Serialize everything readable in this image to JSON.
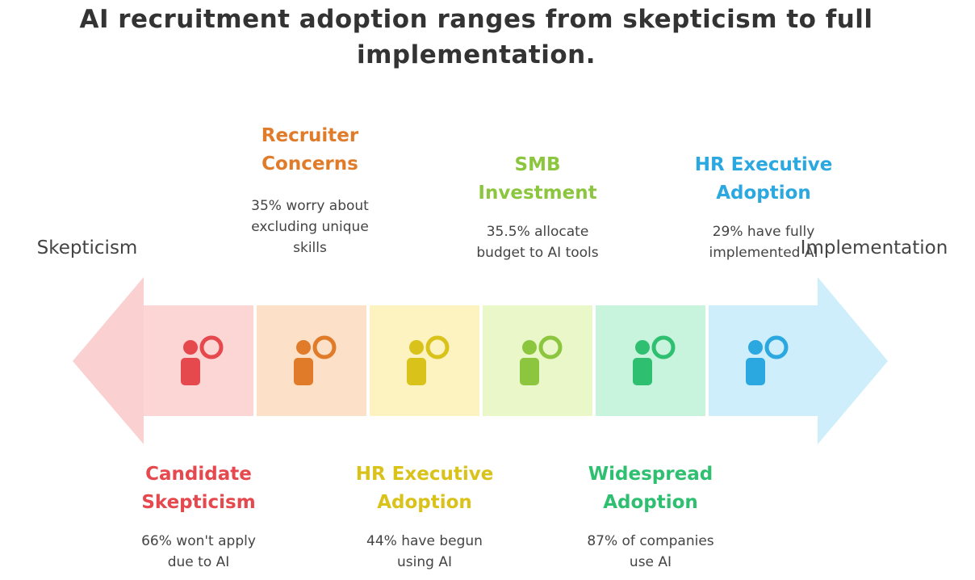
{
  "title_lines": [
    "AI recruitment adoption ranges from skepticism to full",
    "implementation."
  ],
  "left_label": "Skepticism",
  "right_label": "Implementation",
  "items": [
    {
      "title_lines": [
        "Candidate",
        "Skepticism"
      ],
      "description_lines": [
        "66% won't apply",
        "due to AI"
      ]
    },
    {
      "title_lines": [
        "Recruiter",
        "Concerns"
      ],
      "description_lines": [
        "35% worry about",
        "excluding unique",
        "skills"
      ]
    },
    {
      "title_lines": [
        "HR Executive",
        "Adoption"
      ],
      "description_lines": [
        "44% have begun",
        "using AI"
      ]
    },
    {
      "title_lines": [
        "SMB",
        "Investment"
      ],
      "description_lines": [
        "35.5% allocate",
        "budget to AI tools"
      ]
    },
    {
      "title_lines": [
        "Widespread",
        "Adoption"
      ],
      "description_lines": [
        "87% of companies",
        "use AI"
      ]
    },
    {
      "title_lines": [
        "HR Executive",
        "Adoption"
      ],
      "description_lines": [
        "29% have fully",
        "implemented AI"
      ]
    }
  ]
}
